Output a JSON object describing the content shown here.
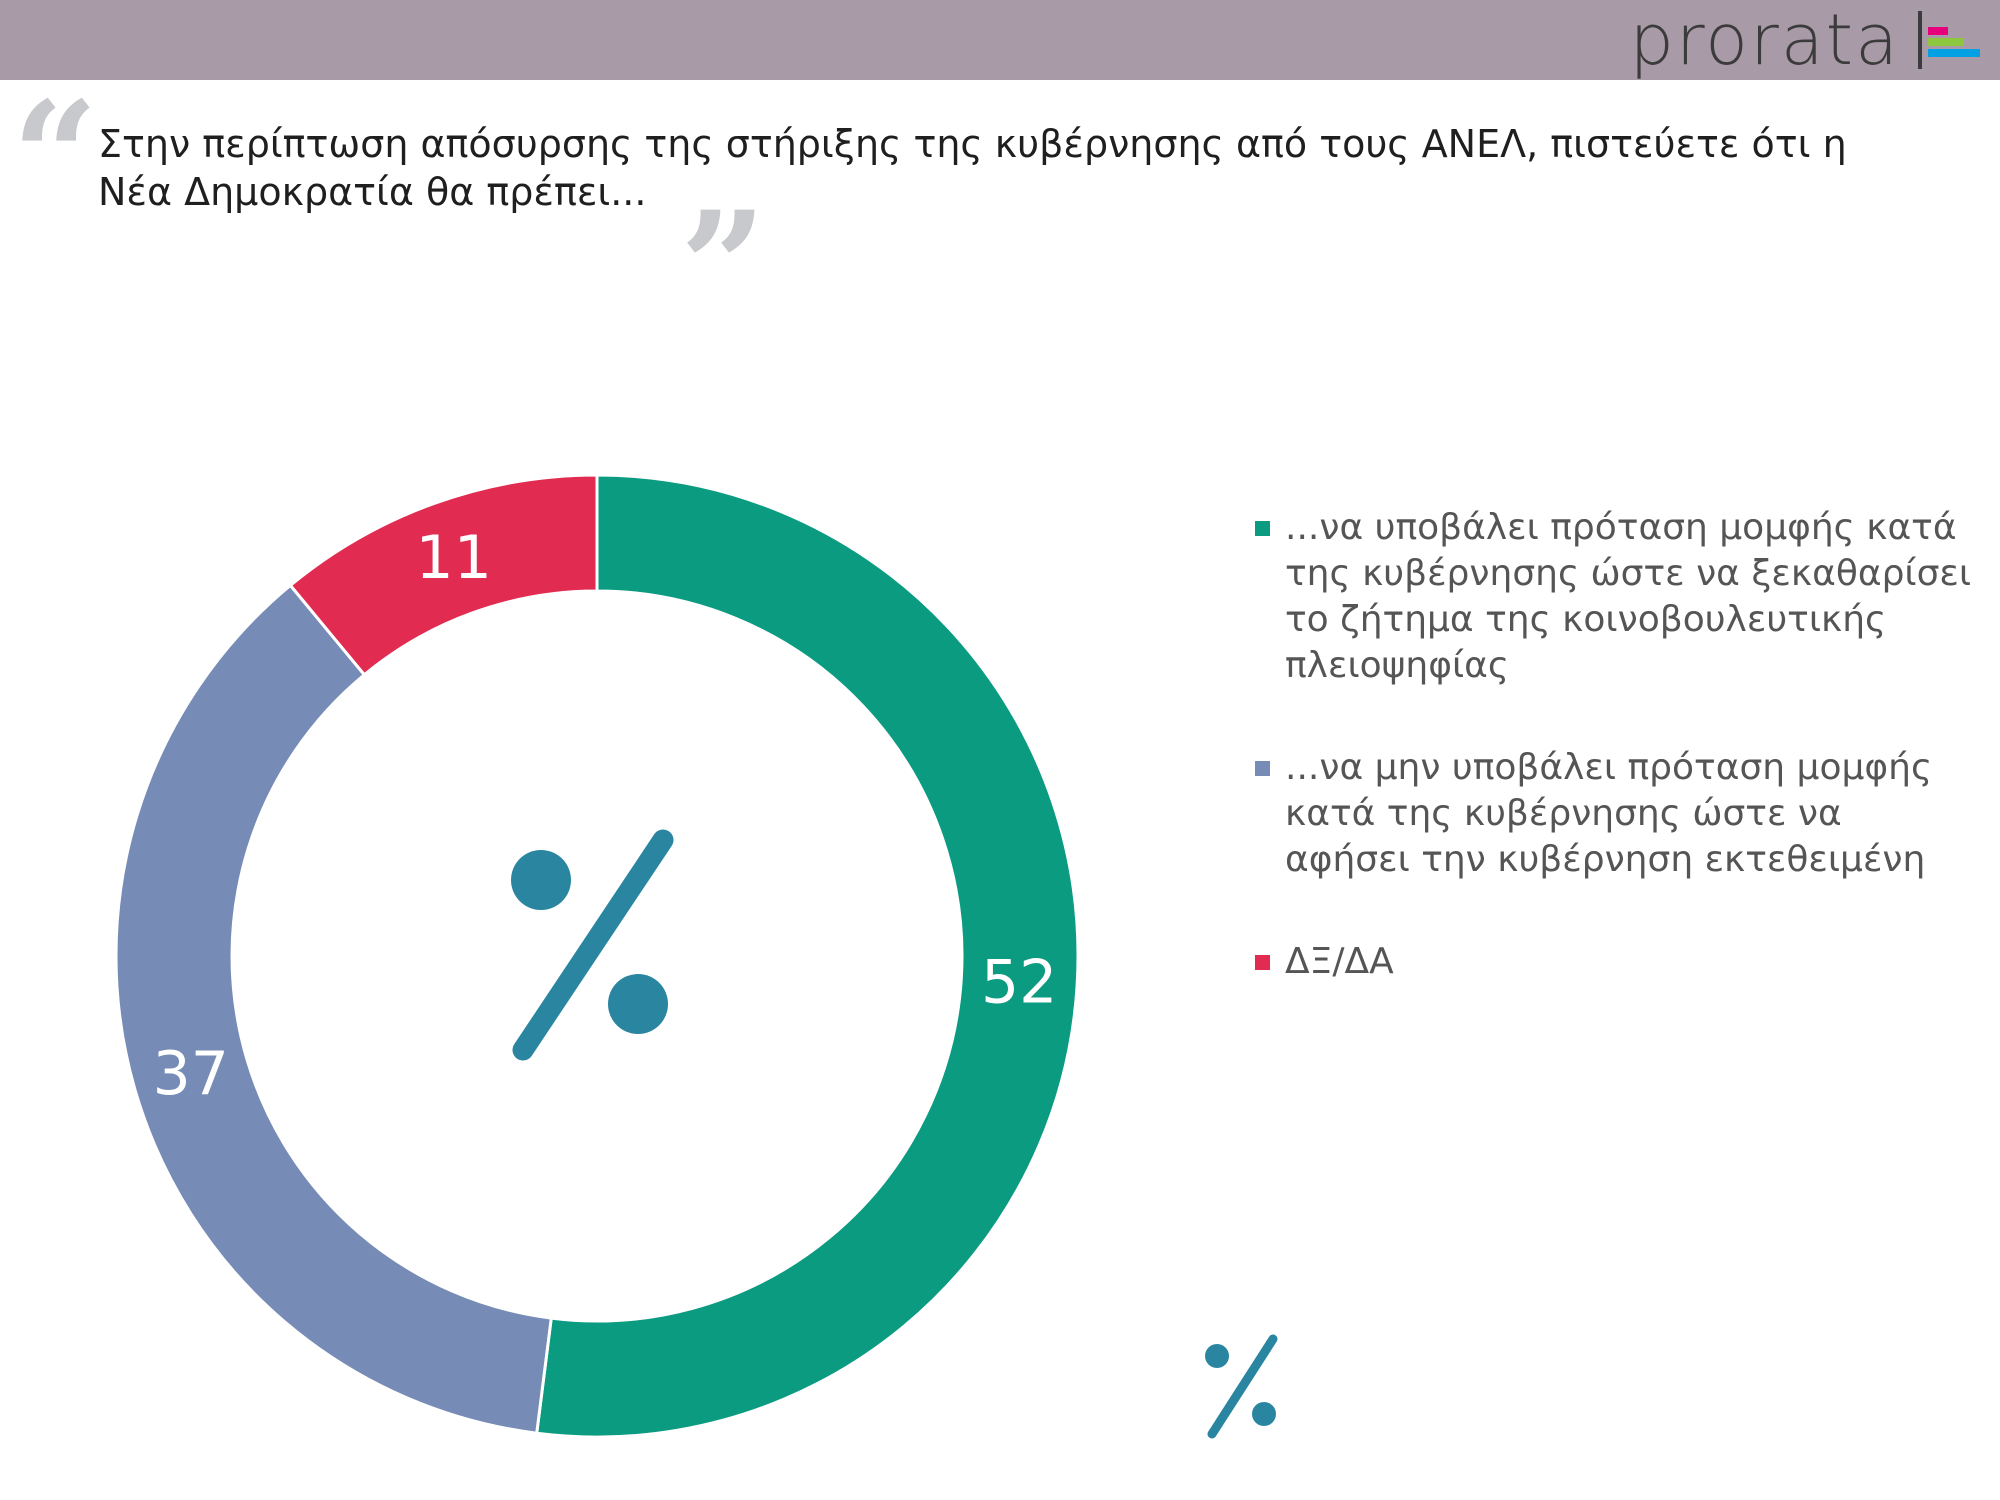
{
  "header": {
    "brand": "prorata",
    "brand_colors": [
      "#e6007e",
      "#8dc63f",
      "#00a0e3"
    ]
  },
  "question": "Στην περίπτωση απόσυρσης της στήριξης της κυβέρνησης από τους ΑΝΕΛ, πιστεύετε ότι η Νέα Δημοκρατία θα πρέπει...",
  "center_symbol": "%",
  "chart_data": {
    "type": "pie",
    "style": "donut",
    "title": "",
    "legend_position": "right",
    "series": [
      {
        "name": "...να υποβάλει πρόταση μομφής κατά της κυβέρνησης ώστε να ξεκαθαρίσει το ζήτημα της κοινοβουλευτικής πλειοψηφίας",
        "value": 52,
        "label": "52",
        "color": "#0a9b80"
      },
      {
        "name": "...να μην υποβάλει πρόταση μομφής κατά της κυβέρνησης ώστε να αφήσει την κυβέρνηση εκτεθειμένη",
        "value": 37,
        "label": "37",
        "color": "#768bb5"
      },
      {
        "name": "ΔΞ/ΔΑ",
        "value": 11,
        "label": "11",
        "color": "#e12b50"
      }
    ]
  }
}
